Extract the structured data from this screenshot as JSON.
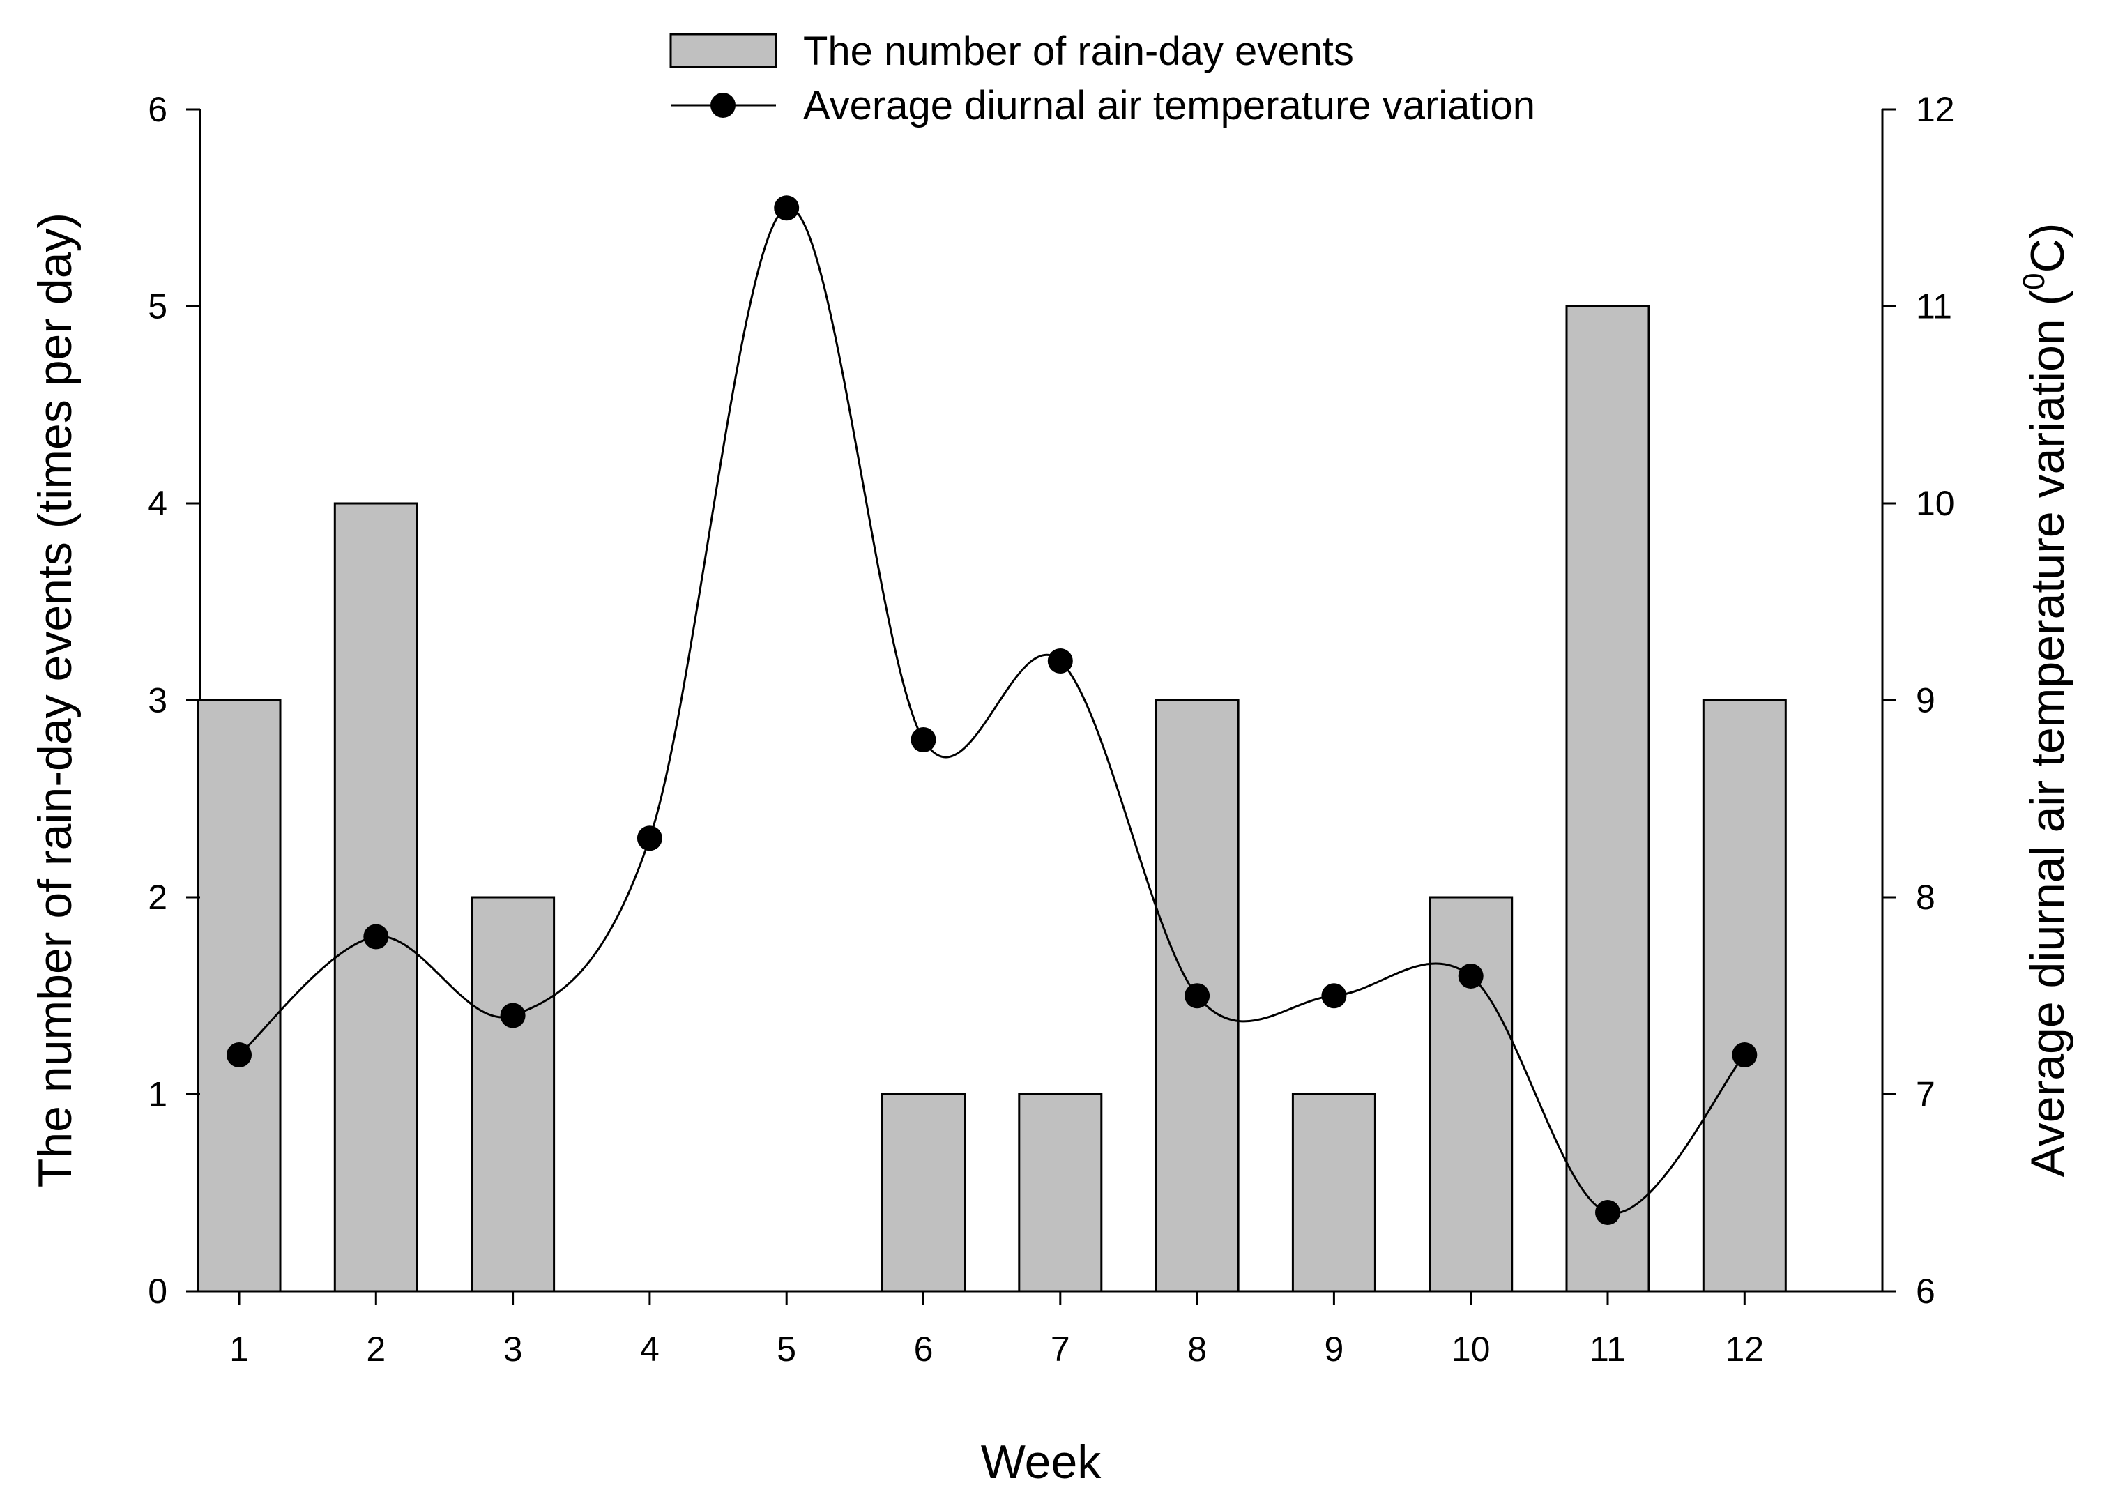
{
  "chart_data": {
    "type": "bar+line",
    "categories": [
      "1",
      "2",
      "3",
      "4",
      "5",
      "6",
      "7",
      "8",
      "9",
      "10",
      "11",
      "12"
    ],
    "series": [
      {
        "name": "The number of rain-day events",
        "type": "bar",
        "axis": "left",
        "values": [
          3,
          4,
          2,
          0,
          0,
          1,
          1,
          3,
          1,
          2,
          5,
          3
        ],
        "color": "#c0c0c0"
      },
      {
        "name": "Average diurnal air temperature variation",
        "type": "line",
        "axis": "right",
        "smooth": true,
        "values": [
          7.2,
          7.8,
          7.4,
          8.3,
          11.5,
          8.8,
          9.2,
          7.5,
          7.5,
          7.6,
          6.4,
          7.2
        ],
        "color": "#000000"
      }
    ],
    "xlabel": "Week",
    "ylabel_left": "The number of rain-day events (times per day)",
    "ylabel_right_main": "Average diurnal air temperature variation (",
    "ylabel_right_sup": "0",
    "ylabel_right_tail": "C)",
    "ylim_left": [
      0,
      6
    ],
    "ylim_right": [
      6,
      12
    ],
    "yticks_left": [
      "0",
      "1",
      "2",
      "3",
      "4",
      "5",
      "6"
    ],
    "yticks_right": [
      "6",
      "7",
      "8",
      "9",
      "10",
      "11",
      "12"
    ],
    "legend_position": "top-center",
    "grid": false
  }
}
